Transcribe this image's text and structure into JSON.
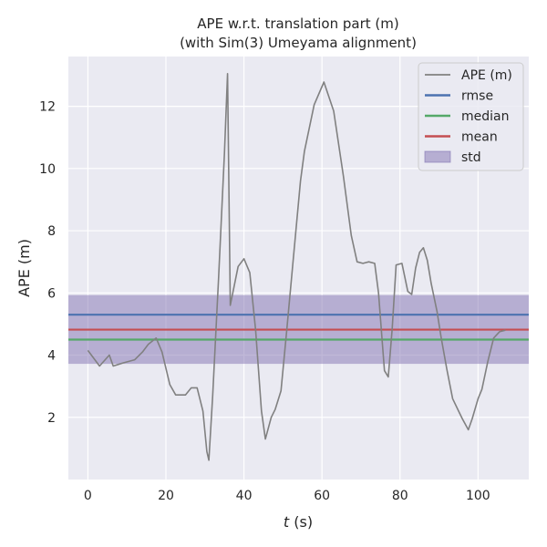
{
  "chart_data": {
    "type": "line",
    "title_line1": "APE w.r.t. translation part (m)",
    "title_line2": "(with Sim(3) Umeyama alignment)",
    "xlabel_italic": "t",
    "xlabel_unit": " (s)",
    "ylabel": "APE (m)",
    "xlim": [
      -5,
      113
    ],
    "ylim": [
      0,
      13.6
    ],
    "xticks": [
      0,
      20,
      40,
      60,
      80,
      100
    ],
    "yticks": [
      2,
      4,
      6,
      8,
      10,
      12
    ],
    "grid": true,
    "legend_position": "top-right",
    "series": [
      {
        "name": "APE (m)",
        "color": "#808080",
        "x": [
          0,
          3,
          5.5,
          6.5,
          9,
          12,
          14,
          15.5,
          17.5,
          19,
          21,
          22.5,
          25,
          26.5,
          28,
          29.5,
          30.5,
          31,
          32,
          33.5,
          35,
          35.8,
          36.5,
          38.5,
          40,
          41.5,
          43,
          44.5,
          45.5,
          47,
          48,
          49.5,
          51,
          52.5,
          54.5,
          55.5,
          58,
          60.5,
          63,
          65.5,
          67.5,
          69,
          70.5,
          72,
          73.5,
          74.5,
          76,
          77,
          78,
          79,
          80.5,
          82,
          83,
          84,
          85,
          86,
          87,
          88,
          89.5,
          90.5,
          92,
          93.5,
          95,
          96,
          97.5,
          98.5,
          100,
          101,
          102.5,
          104,
          105.5,
          107
        ],
        "y": [
          4.15,
          3.65,
          4.0,
          3.65,
          3.75,
          3.85,
          4.1,
          4.35,
          4.55,
          4.1,
          3.05,
          2.72,
          2.72,
          2.95,
          2.95,
          2.2,
          0.9,
          0.62,
          2.7,
          6.5,
          10.5,
          13.05,
          5.6,
          6.85,
          7.1,
          6.65,
          4.8,
          2.2,
          1.3,
          2.0,
          2.25,
          2.85,
          4.85,
          6.9,
          9.6,
          10.55,
          12.05,
          12.78,
          11.85,
          9.75,
          7.85,
          7.0,
          6.95,
          7.0,
          6.95,
          6.0,
          3.5,
          3.3,
          4.85,
          6.9,
          6.95,
          6.05,
          5.95,
          6.8,
          7.3,
          7.45,
          7.05,
          6.3,
          5.4,
          4.6,
          3.55,
          2.6,
          2.2,
          1.95,
          1.6,
          1.95,
          2.6,
          2.9,
          3.8,
          4.55,
          4.75,
          4.8
        ]
      },
      {
        "name": "rmse",
        "color": "#4c72b0",
        "value": 5.3
      },
      {
        "name": "median",
        "color": "#55a868",
        "value": 4.5
      },
      {
        "name": "mean",
        "color": "#c44e52",
        "value": 4.82
      },
      {
        "name": "std",
        "color": "#8172b2",
        "range": [
          3.72,
          5.93
        ]
      }
    ]
  }
}
